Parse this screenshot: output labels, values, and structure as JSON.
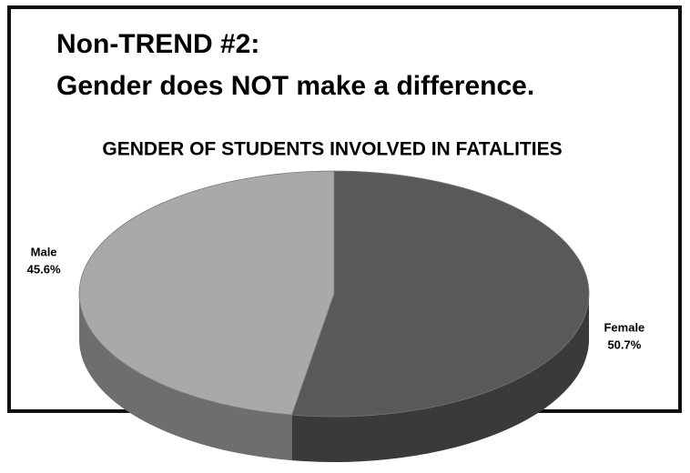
{
  "heading": [
    "Non-TREND #2:",
    "Gender does NOT make a difference."
  ],
  "chart_data": {
    "type": "pie",
    "title": "GENDER OF STUDENTS INVOLVED IN FATALITIES",
    "categories": [
      "Female",
      "Male"
    ],
    "values": [
      50.7,
      45.6
    ],
    "value_labels": [
      "50.7%",
      "45.6%"
    ],
    "colors": [
      "#595959",
      "#a9a9a9"
    ]
  }
}
